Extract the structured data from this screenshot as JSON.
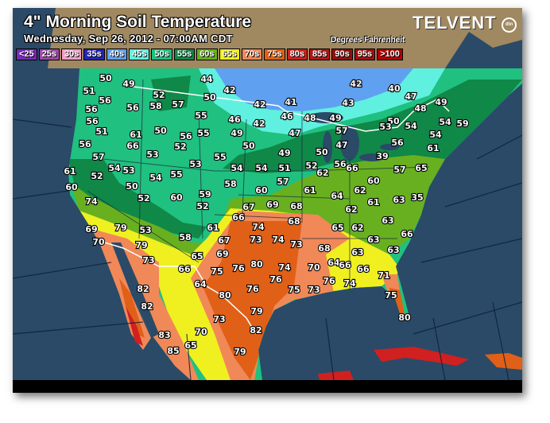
{
  "header": {
    "title": "4\" Morning Soil Temperature",
    "subtitle": "Wednesday, Sep 26, 2012 - 07:00AM CDT",
    "units": "Degrees Fahrenheit",
    "logo": "TELVENT",
    "logo_badge": "dtn"
  },
  "legend": [
    {
      "label": "<25",
      "color": "#7a28b8"
    },
    {
      "label": "25s",
      "color": "#a048a8"
    },
    {
      "label": "30s",
      "color": "#f0a0c8"
    },
    {
      "label": "35s",
      "color": "#2424b8"
    },
    {
      "label": "40s",
      "color": "#60a0f0"
    },
    {
      "label": "45s",
      "color": "#60f0e0"
    },
    {
      "label": "50s",
      "color": "#20c080"
    },
    {
      "label": "55s",
      "color": "#108848"
    },
    {
      "label": "60s",
      "color": "#68b020"
    },
    {
      "label": "65s",
      "color": "#f0f020"
    },
    {
      "label": "70s",
      "color": "#f08858"
    },
    {
      "label": "75s",
      "color": "#e06018"
    },
    {
      "label": "80s",
      "color": "#d02020"
    },
    {
      "label": "85s",
      "color": "#b01818"
    },
    {
      "label": "90s",
      "color": "#901010"
    },
    {
      "label": "95s",
      "color": "#a01010"
    },
    {
      "label": ">100",
      "color": "#b00000"
    }
  ],
  "map": {
    "ocean_color": "#2a4a68",
    "outside_land_color": "#a08860",
    "border_color": "#ffffff",
    "temperatures": [
      "50",
      "49",
      "51",
      "56",
      "56",
      "56",
      "58",
      "57",
      "52",
      "44",
      "50",
      "42",
      "42",
      "41",
      "55",
      "46",
      "42",
      "46",
      "56",
      "51",
      "50",
      "56",
      "55",
      "49",
      "47",
      "61",
      "66",
      "52",
      "50",
      "49",
      "56",
      "57",
      "53",
      "55",
      "54",
      "54",
      "51",
      "61",
      "52",
      "54",
      "53",
      "54",
      "55",
      "53",
      "60",
      "50",
      "58",
      "60",
      "57",
      "74",
      "52",
      "60",
      "59",
      "52",
      "67",
      "69",
      "68",
      "66",
      "68",
      "42",
      "40",
      "47",
      "43",
      "48",
      "49",
      "48",
      "49",
      "50",
      "53",
      "54",
      "54",
      "59",
      "54",
      "47",
      "57",
      "56",
      "61",
      "50",
      "52",
      "56",
      "66",
      "62",
      "39",
      "57",
      "65",
      "61",
      "64",
      "62",
      "60",
      "63",
      "35",
      "62",
      "61",
      "63",
      "65",
      "62",
      "63",
      "66",
      "63",
      "68",
      "63",
      "64",
      "70",
      "66",
      "66",
      "71",
      "76",
      "74",
      "73",
      "75",
      "80",
      "69",
      "70",
      "79",
      "53",
      "58",
      "61",
      "67",
      "74",
      "73",
      "74",
      "73",
      "79",
      "65",
      "69",
      "73",
      "66",
      "75",
      "76",
      "80",
      "74",
      "76",
      "75",
      "64",
      "80",
      "76",
      "82",
      "82",
      "79",
      "73",
      "82",
      "83",
      "70",
      "65",
      "85",
      "79"
    ]
  }
}
